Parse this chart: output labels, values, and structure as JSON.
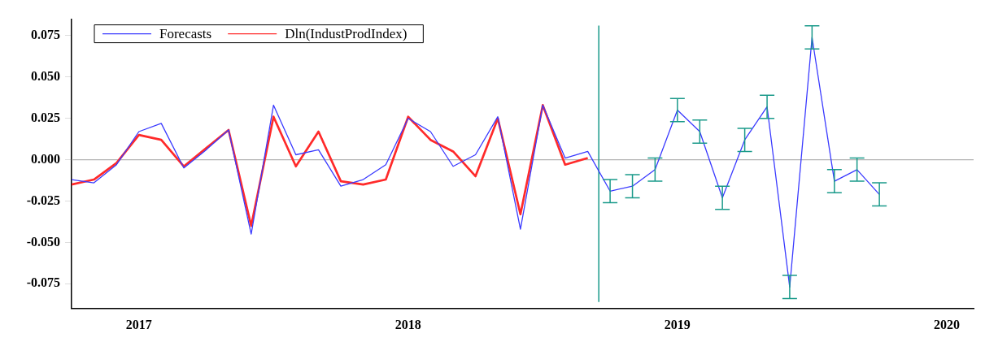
{
  "chart_data": {
    "type": "line",
    "x": [
      2016.75,
      2016.833,
      2016.917,
      2017,
      2017.083,
      2017.167,
      2017.25,
      2017.333,
      2017.417,
      2017.5,
      2017.583,
      2017.667,
      2017.75,
      2017.833,
      2017.917,
      2018,
      2018.083,
      2018.167,
      2018.25,
      2018.333,
      2018.417,
      2018.5,
      2018.583,
      2018.667,
      2018.75,
      2018.833,
      2018.917,
      2019,
      2019.083,
      2019.167,
      2019.25,
      2019.333,
      2019.417,
      2019.5,
      2019.583,
      2019.667,
      2019.75
    ],
    "series": [
      {
        "name": "Forecasts",
        "color": "#3a3aff",
        "values": [
          -0.012,
          -0.014,
          -0.003,
          0.017,
          0.022,
          -0.005,
          0.006,
          0.018,
          -0.045,
          0.033,
          0.003,
          0.006,
          -0.016,
          -0.012,
          -0.003,
          0.025,
          0.017,
          -0.004,
          0.003,
          0.026,
          -0.042,
          0.033,
          0.001,
          0.005,
          -0.019,
          -0.016,
          -0.006,
          0.03,
          0.017,
          -0.023,
          0.012,
          0.032,
          -0.077,
          0.074,
          -0.013,
          -0.006,
          -0.021
        ],
        "errors": [
          null,
          null,
          null,
          null,
          null,
          null,
          null,
          null,
          null,
          null,
          null,
          null,
          null,
          null,
          null,
          null,
          null,
          null,
          null,
          null,
          null,
          null,
          null,
          null,
          0.007,
          0.007,
          0.007,
          0.007,
          0.007,
          0.007,
          0.007,
          0.007,
          0.007,
          0.007,
          0.007,
          0.007,
          0.007
        ]
      },
      {
        "name": "Dln(IndustProdIndex)",
        "color": "#ff2a2a",
        "x": [
          2016.75,
          2016.833,
          2016.917,
          2017,
          2017.083,
          2017.167,
          2017.25,
          2017.333,
          2017.417,
          2017.5,
          2017.583,
          2017.667,
          2017.75,
          2017.833,
          2017.917,
          2018,
          2018.083,
          2018.167,
          2018.25,
          2018.333,
          2018.417,
          2018.5,
          2018.583,
          2018.667
        ],
        "values": [
          -0.015,
          -0.012,
          -0.002,
          0.015,
          0.012,
          -0.004,
          0.007,
          0.018,
          -0.04,
          0.026,
          -0.004,
          0.017,
          -0.013,
          -0.015,
          -0.012,
          0.026,
          0.012,
          0.005,
          -0.01,
          0.025,
          -0.033,
          0.033,
          -0.003,
          0.001
        ]
      }
    ],
    "xlim": [
      2016.75,
      2020.1
    ],
    "xticks": [
      2017,
      2018,
      2019,
      2020
    ],
    "ylim": [
      -0.09,
      0.085
    ],
    "yticks": [
      {
        "value": -0.075,
        "label": "-0.075"
      },
      {
        "value": -0.05,
        "label": "-0.050"
      },
      {
        "value": -0.025,
        "label": "-0.025"
      },
      {
        "value": 0,
        "label": "0.000"
      },
      {
        "value": 0.025,
        "label": "0.025"
      },
      {
        "value": 0.05,
        "label": "0.050"
      },
      {
        "value": 0.075,
        "label": "0.075"
      }
    ],
    "ref_lines": [
      {
        "axis": "y",
        "value": 0,
        "color": "#b4b4b4"
      },
      {
        "axis": "x",
        "value": 2018.708,
        "color": "#1a9a8a"
      }
    ],
    "grid": false,
    "legend": "top left",
    "marker": "none",
    "line_style": "solid"
  }
}
